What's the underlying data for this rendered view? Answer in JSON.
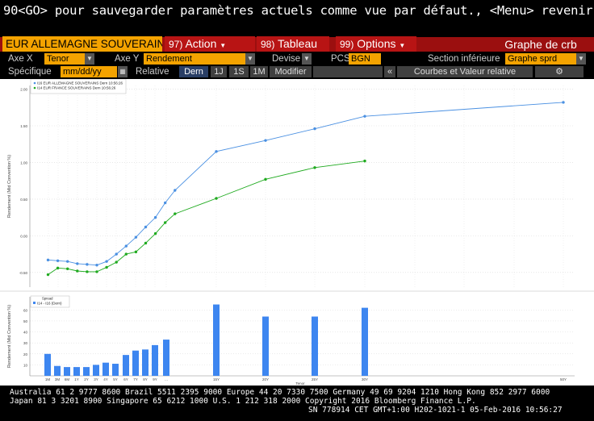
{
  "hint": "90<GO> pour sauvegarder paramètres actuels comme vue par défaut., <Menu> revenir",
  "security_name": "EUR ALLEMAGNE SOUVERAINS",
  "menus": [
    {
      "num": "97)",
      "label": "Action"
    },
    {
      "num": "98)",
      "label": "Tableau"
    },
    {
      "num": "99)",
      "label": "Options"
    }
  ],
  "function_title": "Graphe de crb",
  "controls": {
    "axe_x_label": "Axe X",
    "axe_x_value": "Tenor",
    "axe_y_label": "Axe Y",
    "axe_y_value": "Rendement",
    "devise_label": "Devise",
    "devise_value": "",
    "pcs_label": "PCS",
    "pcs_value": "BGN",
    "section_label": "Section inférieure",
    "section_value": "Graphe sprd",
    "specifique_label": "Spécifique",
    "date_placeholder": "mm/dd/yy",
    "relative_label": "Relative",
    "range_buttons": [
      "Dern",
      "1J",
      "1S",
      "1M",
      "Modifier"
    ],
    "collapse_glyph": "«",
    "curves_button": "Courbes et Valeur relative",
    "gear_glyph": "⚙"
  },
  "colors": {
    "de_curve": "#4a90e2",
    "fr_curve": "#1faa1f",
    "spread_bar": "#3d86f0"
  },
  "chart_data": [
    {
      "type": "line",
      "ylabel": "Rendement (Mid Convention %)",
      "ylim": [
        -0.7,
        2.05
      ],
      "yticks": [
        "2.00",
        "1.50",
        "1.00",
        "0.50",
        "0.00",
        "-0.50"
      ],
      "grid": true,
      "legend": [
        "I16 EUR ALLEMAGNE SOUVERAINS Dern 10:56:26",
        "I14 EUR FRANCE SOUVERAINS Dern 10:56:26"
      ],
      "legend_position": "top-left",
      "series": [
        {
          "name": "I16 EUR ALLEMAGNE SOUVERAINS Dern 10:56:26",
          "x": [
            1,
            2,
            3,
            4,
            5,
            6,
            7,
            8,
            9,
            10,
            11,
            12,
            13,
            14,
            15,
            16,
            20,
            24,
            28,
            32,
            52
          ],
          "y": [
            -0.33,
            -0.34,
            -0.35,
            -0.38,
            -0.39,
            -0.4,
            -0.35,
            -0.25,
            -0.14,
            -0.02,
            0.12,
            0.25,
            0.45,
            0.62,
            1.15,
            1.3,
            1.46,
            1.63,
            1.82,
            1.82,
            1.82
          ]
        },
        {
          "name": "I14 EUR FRANCE SOUVERAINS Dern 10:56:26",
          "x": [
            1,
            2,
            3,
            4,
            5,
            6,
            7,
            8,
            9,
            10,
            11,
            12,
            13,
            14,
            15,
            16,
            20,
            24,
            28,
            32
          ],
          "y": [
            -0.53,
            -0.44,
            -0.45,
            -0.48,
            -0.49,
            -0.49,
            -0.43,
            -0.36,
            -0.25,
            -0.22,
            -0.1,
            0.03,
            0.18,
            0.3,
            0.51,
            0.77,
            0.93,
            1.02,
            1.02,
            1.02
          ]
        }
      ]
    },
    {
      "type": "bar",
      "ylabel": "Rendement (Mid Convention %)",
      "xlabel": "Tenor",
      "ylim": [
        0,
        72
      ],
      "yticks": [
        "60",
        "50",
        "40",
        "30",
        "20",
        "10"
      ],
      "legend_title": "Spread",
      "legend": [
        "I14 - I16 (Dern)"
      ],
      "categories": [
        "1M",
        "3M",
        "6M",
        "1Y",
        "2Y",
        "3Y",
        "4Y",
        "5Y",
        "6Y",
        "7Y",
        "8Y",
        "9Y",
        "...",
        "15Y",
        "20Y",
        "25Y",
        "30Y",
        "50Y"
      ],
      "values": [
        20,
        9,
        8,
        8,
        8,
        10,
        12,
        11,
        19,
        23,
        24,
        28,
        33,
        65,
        54,
        54,
        62,
        null
      ]
    }
  ],
  "footer": {
    "line1": "Australia 61 2 9777 8600 Brazil 5511 2395 9000 Europe 44 20 7330 7500 Germany 49 69 9204 1210 Hong Kong 852 2977 6000",
    "line2": "Japan 81 3 3201 8900         Singapore 65 6212 1000        U.S. 1 212 318 2000           Copyright 2016 Bloomberg Finance L.P.",
    "line3": "SN 778914 CET  GMT+1:00 H202-1021-1 05-Feb-2016 10:56:27"
  }
}
